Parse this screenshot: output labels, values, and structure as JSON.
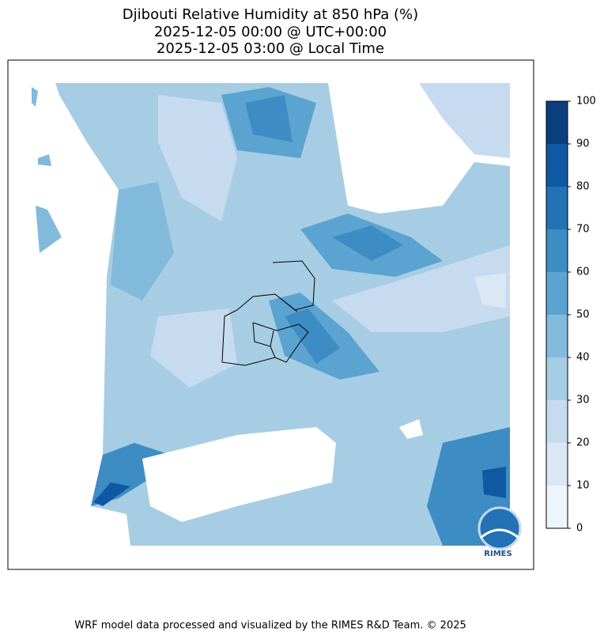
{
  "title": [
    "Djibouti Relative Humidity at 850 hPa (%)",
    "2025-12-05 00:00 @ UTC+00:00",
    "2025-12-05 03:00 @ Local Time"
  ],
  "colorbar": {
    "ticks": [
      0,
      10,
      20,
      30,
      40,
      50,
      60,
      70,
      80,
      90,
      100
    ],
    "colors": [
      "#eef5fc",
      "#dae8f5",
      "#c6dbef",
      "#a6cde4",
      "#82badb",
      "#5ba3d0",
      "#3d8dc4",
      "#2272b5",
      "#0f59a3",
      "#0a3f7f"
    ]
  },
  "logo": "RIMES",
  "footer": "WRF model data processed and visualized by the RIMES R&D Team. © 2025"
}
